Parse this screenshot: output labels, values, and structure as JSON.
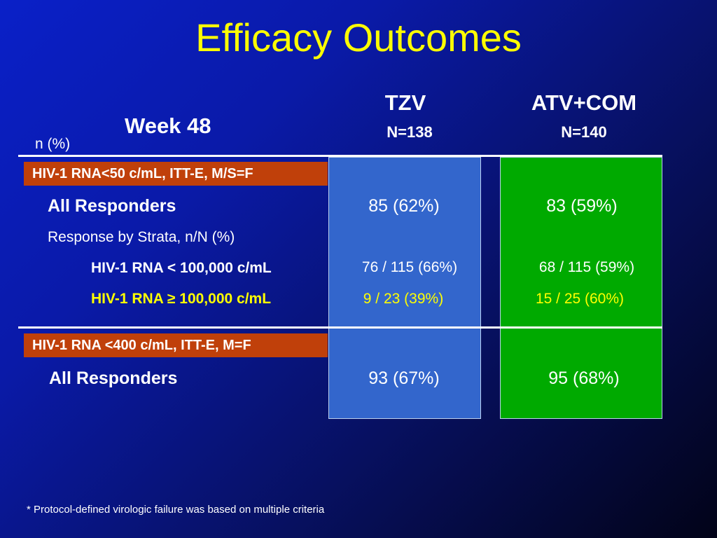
{
  "slide": {
    "title": "Efficacy Outcomes",
    "row_header": "Week 48",
    "unit_label": "n (%)",
    "footnote": "* Protocol-defined virologic failure was based on multiple criteria"
  },
  "columns": [
    {
      "name": "TZV",
      "n": "N=138",
      "color": "#3366cc"
    },
    {
      "name": "ATV+COM",
      "n": "N=140",
      "color": "#00aa00"
    }
  ],
  "section1": {
    "band": "HIV-1 RNA<50 c/mL, ITT-E, M/S=F",
    "all_responders_label": "All Responders",
    "all_responders": [
      "85 (62%)",
      "83 (59%)"
    ],
    "strata_heading": "Response by Strata, n/N (%)",
    "strata": [
      {
        "label": "HIV-1 RNA < 100,000 c/mL",
        "values": [
          "76 / 115 (66%)",
          "68 / 115 (59%)"
        ],
        "color": "#ffffff"
      },
      {
        "label": "HIV-1 RNA ≥ 100,000 c/mL",
        "values": [
          "9 / 23 (39%)",
          "15 / 25 (60%)"
        ],
        "color": "#ffff00"
      }
    ]
  },
  "section2": {
    "band": "HIV-1 RNA <400 c/mL, ITT-E, M=F",
    "all_responders_label": "All Responders",
    "all_responders": [
      "93 (67%)",
      "95 (68%)"
    ]
  },
  "colors": {
    "title": "#ffff00",
    "band": "#c0400a",
    "highlight_text": "#ffff00"
  }
}
